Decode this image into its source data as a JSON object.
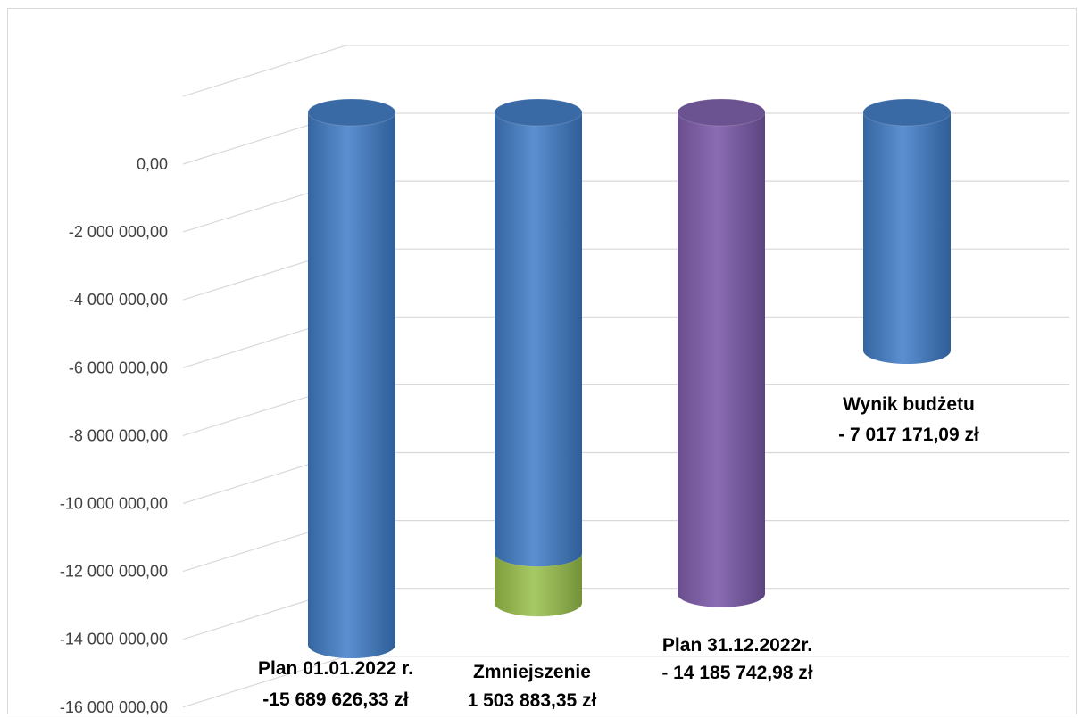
{
  "chart_data": {
    "type": "bar",
    "style": "3d-cylinder",
    "y_ticks": [
      "0,00",
      "-2 000 000,00",
      "-4 000 000,00",
      "-6 000 000,00",
      "-8 000 000,00",
      "-10 000 000,00",
      "-12 000 000,00",
      "-14 000 000,00",
      "-16 000 000,00"
    ],
    "ylim": [
      -16000000,
      0
    ],
    "grid": true,
    "legend": "none",
    "series": [
      {
        "values": [
          -15689626.33,
          -12985743,
          -14185742.98,
          -7017171.09
        ],
        "colors": [
          "#4f81bd",
          "#4f81bd",
          "#8064a2",
          "#4f81bd"
        ]
      },
      {
        "values": [
          0,
          -1503883.35,
          0,
          0
        ],
        "colors": [
          "#9bbb59",
          "#9bbb59",
          "#9bbb59",
          "#9bbb59"
        ]
      }
    ],
    "data_labels": [
      {
        "lines": [
          "Plan 01.01.2022 r.",
          "-15 689 626,33 zł"
        ]
      },
      {
        "lines": [
          "Zmniejszenie",
          "1 503 883,35 zł"
        ]
      },
      {
        "lines": [
          "Plan 31.12.2022r.",
          "- 14 185 742,98 zł"
        ]
      },
      {
        "lines": [
          "Wynik budżetu",
          "- 7 017 171,09 zł"
        ]
      }
    ]
  }
}
